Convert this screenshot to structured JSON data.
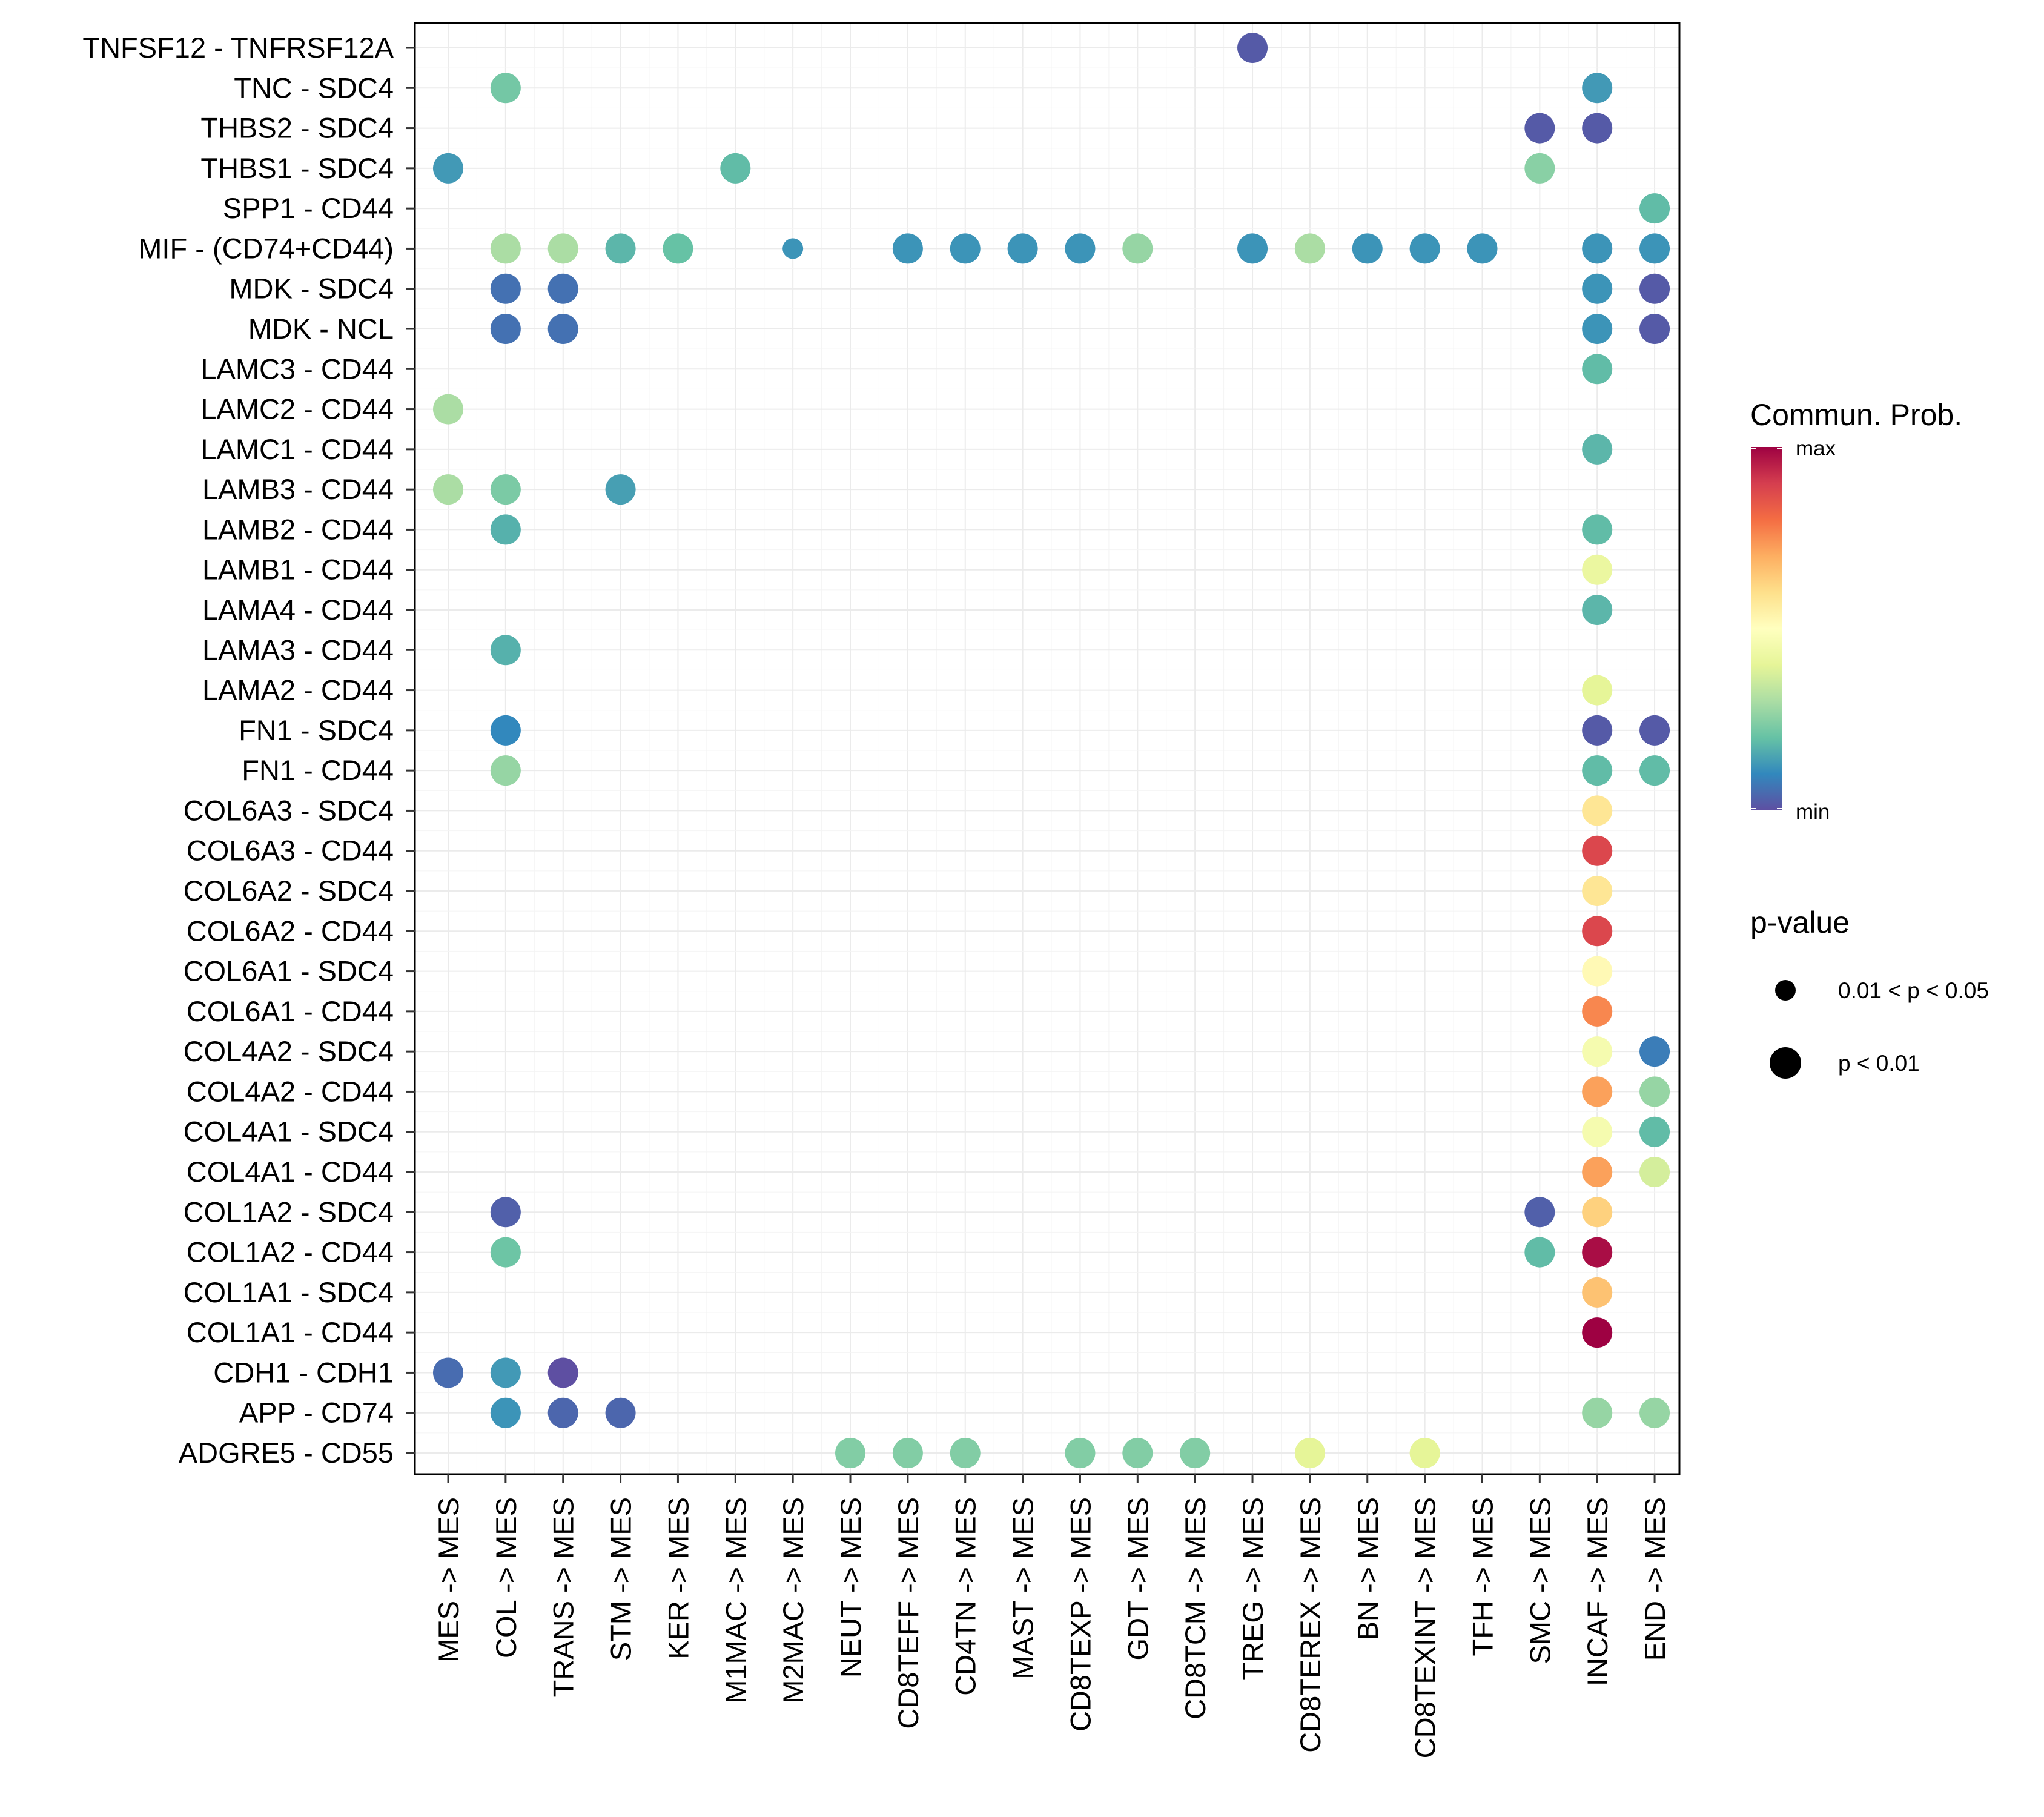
{
  "chart_data": {
    "type": "dotplot",
    "title": "",
    "xlabel": "",
    "ylabel": "",
    "rows": [
      "TNFSF12 - TNFRSF12A",
      "TNC - SDC4",
      "THBS2 - SDC4",
      "THBS1 - SDC4",
      "SPP1 - CD44",
      "MIF - (CD74+CD44)",
      "MDK - SDC4",
      "MDK - NCL",
      "LAMC3 - CD44",
      "LAMC2 - CD44",
      "LAMC1 - CD44",
      "LAMB3 - CD44",
      "LAMB2 - CD44",
      "LAMB1 - CD44",
      "LAMA4 - CD44",
      "LAMA3 - CD44",
      "LAMA2 - CD44",
      "FN1 - SDC4",
      "FN1 - CD44",
      "COL6A3 - SDC4",
      "COL6A3 - CD44",
      "COL6A2 - SDC4",
      "COL6A2 - CD44",
      "COL6A1 - SDC4",
      "COL6A1 - CD44",
      "COL4A2 - SDC4",
      "COL4A2 - CD44",
      "COL4A1 - SDC4",
      "COL4A1 - CD44",
      "COL1A2 - SDC4",
      "COL1A2 - CD44",
      "COL1A1 - SDC4",
      "COL1A1 - CD44",
      "CDH1 - CDH1",
      "APP - CD74",
      "ADGRE5 - CD55"
    ],
    "columns": [
      "MES -> MES",
      "COL -> MES",
      "TRANS -> MES",
      "STM -> MES",
      "KER -> MES",
      "M1MAC -> MES",
      "M2MAC -> MES",
      "NEUT -> MES",
      "CD8TEFF -> MES",
      "CD4TN -> MES",
      "MAST -> MES",
      "CD8TEXP -> MES",
      "GDT -> MES",
      "CD8TCM -> MES",
      "TREG -> MES",
      "CD8TEREX -> MES",
      "BN -> MES",
      "CD8TEXINT -> MES",
      "TFH -> MES",
      "SMC -> MES",
      "INCAF -> MES",
      "END -> MES"
    ],
    "value_scale": "relative communication probability, 0 = min, 1 = max",
    "points": [
      {
        "row": "TNFSF12 - TNFRSF12A",
        "col": "TREG -> MES",
        "prob": 0.02,
        "p": "p < 0.01"
      },
      {
        "row": "TNC - SDC4",
        "col": "COL -> MES",
        "prob": 0.22,
        "p": "p < 0.01"
      },
      {
        "row": "TNC - SDC4",
        "col": "INCAF -> MES",
        "prob": 0.13,
        "p": "p < 0.01"
      },
      {
        "row": "THBS2 - SDC4",
        "col": "SMC -> MES",
        "prob": 0.02,
        "p": "p < 0.01"
      },
      {
        "row": "THBS2 - SDC4",
        "col": "INCAF -> MES",
        "prob": 0.02,
        "p": "p < 0.01"
      },
      {
        "row": "THBS1 - SDC4",
        "col": "MES -> MES",
        "prob": 0.13,
        "p": "p < 0.01"
      },
      {
        "row": "THBS1 - SDC4",
        "col": "M1MAC -> MES",
        "prob": 0.19,
        "p": "p < 0.01"
      },
      {
        "row": "THBS1 - SDC4",
        "col": "SMC -> MES",
        "prob": 0.25,
        "p": "p < 0.01"
      },
      {
        "row": "SPP1 - CD44",
        "col": "END -> MES",
        "prob": 0.19,
        "p": "p < 0.01"
      },
      {
        "row": "MIF - (CD74+CD44)",
        "col": "COL -> MES",
        "prob": 0.3,
        "p": "p < 0.01"
      },
      {
        "row": "MIF - (CD74+CD44)",
        "col": "TRANS -> MES",
        "prob": 0.3,
        "p": "p < 0.01"
      },
      {
        "row": "MIF - (CD74+CD44)",
        "col": "STM -> MES",
        "prob": 0.18,
        "p": "p < 0.01"
      },
      {
        "row": "MIF - (CD74+CD44)",
        "col": "KER -> MES",
        "prob": 0.2,
        "p": "p < 0.01"
      },
      {
        "row": "MIF - (CD74+CD44)",
        "col": "M2MAC -> MES",
        "prob": 0.12,
        "p": "0.01 < p < 0.05"
      },
      {
        "row": "MIF - (CD74+CD44)",
        "col": "CD8TEFF -> MES",
        "prob": 0.12,
        "p": "p < 0.01"
      },
      {
        "row": "MIF - (CD74+CD44)",
        "col": "CD4TN -> MES",
        "prob": 0.12,
        "p": "p < 0.01"
      },
      {
        "row": "MIF - (CD74+CD44)",
        "col": "MAST -> MES",
        "prob": 0.12,
        "p": "p < 0.01"
      },
      {
        "row": "MIF - (CD74+CD44)",
        "col": "CD8TEXP -> MES",
        "prob": 0.12,
        "p": "p < 0.01"
      },
      {
        "row": "MIF - (CD74+CD44)",
        "col": "GDT -> MES",
        "prob": 0.27,
        "p": "p < 0.01"
      },
      {
        "row": "MIF - (CD74+CD44)",
        "col": "TREG -> MES",
        "prob": 0.12,
        "p": "p < 0.01"
      },
      {
        "row": "MIF - (CD74+CD44)",
        "col": "CD8TEREX -> MES",
        "prob": 0.3,
        "p": "p < 0.01"
      },
      {
        "row": "MIF - (CD74+CD44)",
        "col": "BN -> MES",
        "prob": 0.12,
        "p": "p < 0.01"
      },
      {
        "row": "MIF - (CD74+CD44)",
        "col": "CD8TEXINT -> MES",
        "prob": 0.12,
        "p": "p < 0.01"
      },
      {
        "row": "MIF - (CD74+CD44)",
        "col": "TFH -> MES",
        "prob": 0.12,
        "p": "p < 0.01"
      },
      {
        "row": "MIF - (CD74+CD44)",
        "col": "INCAF -> MES",
        "prob": 0.12,
        "p": "p < 0.01"
      },
      {
        "row": "MIF - (CD74+CD44)",
        "col": "END -> MES",
        "prob": 0.12,
        "p": "p < 0.01"
      },
      {
        "row": "MDK - SDC4",
        "col": "COL -> MES",
        "prob": 0.06,
        "p": "p < 0.01"
      },
      {
        "row": "MDK - SDC4",
        "col": "TRANS -> MES",
        "prob": 0.06,
        "p": "p < 0.01"
      },
      {
        "row": "MDK - SDC4",
        "col": "INCAF -> MES",
        "prob": 0.12,
        "p": "p < 0.01"
      },
      {
        "row": "MDK - SDC4",
        "col": "END -> MES",
        "prob": 0.02,
        "p": "p < 0.01"
      },
      {
        "row": "MDK - NCL",
        "col": "COL -> MES",
        "prob": 0.06,
        "p": "p < 0.01"
      },
      {
        "row": "MDK - NCL",
        "col": "TRANS -> MES",
        "prob": 0.06,
        "p": "p < 0.01"
      },
      {
        "row": "MDK - NCL",
        "col": "INCAF -> MES",
        "prob": 0.12,
        "p": "p < 0.01"
      },
      {
        "row": "MDK - NCL",
        "col": "END -> MES",
        "prob": 0.02,
        "p": "p < 0.01"
      },
      {
        "row": "LAMC3 - CD44",
        "col": "INCAF -> MES",
        "prob": 0.19,
        "p": "p < 0.01"
      },
      {
        "row": "LAMC2 - CD44",
        "col": "MES -> MES",
        "prob": 0.3,
        "p": "p < 0.01"
      },
      {
        "row": "LAMC1 - CD44",
        "col": "INCAF -> MES",
        "prob": 0.18,
        "p": "p < 0.01"
      },
      {
        "row": "LAMB3 - CD44",
        "col": "MES -> MES",
        "prob": 0.3,
        "p": "p < 0.01"
      },
      {
        "row": "LAMB3 - CD44",
        "col": "COL -> MES",
        "prob": 0.23,
        "p": "p < 0.01"
      },
      {
        "row": "LAMB3 - CD44",
        "col": "STM -> MES",
        "prob": 0.14,
        "p": "p < 0.01"
      },
      {
        "row": "LAMB2 - CD44",
        "col": "COL -> MES",
        "prob": 0.17,
        "p": "p < 0.01"
      },
      {
        "row": "LAMB2 - CD44",
        "col": "INCAF -> MES",
        "prob": 0.19,
        "p": "p < 0.01"
      },
      {
        "row": "LAMB1 - CD44",
        "col": "INCAF -> MES",
        "prob": 0.42,
        "p": "p < 0.01"
      },
      {
        "row": "LAMA4 - CD44",
        "col": "INCAF -> MES",
        "prob": 0.18,
        "p": "p < 0.01"
      },
      {
        "row": "LAMA3 - CD44",
        "col": "COL -> MES",
        "prob": 0.17,
        "p": "p < 0.01"
      },
      {
        "row": "LAMA2 - CD44",
        "col": "INCAF -> MES",
        "prob": 0.4,
        "p": "p < 0.01"
      },
      {
        "row": "FN1 - SDC4",
        "col": "COL -> MES",
        "prob": 0.1,
        "p": "p < 0.01"
      },
      {
        "row": "FN1 - SDC4",
        "col": "INCAF -> MES",
        "prob": 0.02,
        "p": "p < 0.01"
      },
      {
        "row": "FN1 - SDC4",
        "col": "END -> MES",
        "prob": 0.02,
        "p": "p < 0.01"
      },
      {
        "row": "FN1 - CD44",
        "col": "COL -> MES",
        "prob": 0.27,
        "p": "p < 0.01"
      },
      {
        "row": "FN1 - CD44",
        "col": "INCAF -> MES",
        "prob": 0.19,
        "p": "p < 0.01"
      },
      {
        "row": "FN1 - CD44",
        "col": "END -> MES",
        "prob": 0.19,
        "p": "p < 0.01"
      },
      {
        "row": "COL6A3 - SDC4",
        "col": "INCAF -> MES",
        "prob": 0.58,
        "p": "p < 0.01"
      },
      {
        "row": "COL6A3 - CD44",
        "col": "INCAF -> MES",
        "prob": 0.88,
        "p": "p < 0.01"
      },
      {
        "row": "COL6A2 - SDC4",
        "col": "INCAF -> MES",
        "prob": 0.58,
        "p": "p < 0.01"
      },
      {
        "row": "COL6A2 - CD44",
        "col": "INCAF -> MES",
        "prob": 0.88,
        "p": "p < 0.01"
      },
      {
        "row": "COL6A1 - SDC4",
        "col": "INCAF -> MES",
        "prob": 0.52,
        "p": "p < 0.01"
      },
      {
        "row": "COL6A1 - CD44",
        "col": "INCAF -> MES",
        "prob": 0.76,
        "p": "p < 0.01"
      },
      {
        "row": "COL4A2 - SDC4",
        "col": "INCAF -> MES",
        "prob": 0.46,
        "p": "p < 0.01"
      },
      {
        "row": "COL4A2 - SDC4",
        "col": "END -> MES",
        "prob": 0.08,
        "p": "p < 0.01"
      },
      {
        "row": "COL4A2 - CD44",
        "col": "INCAF -> MES",
        "prob": 0.72,
        "p": "p < 0.01"
      },
      {
        "row": "COL4A2 - CD44",
        "col": "END -> MES",
        "prob": 0.27,
        "p": "p < 0.01"
      },
      {
        "row": "COL4A1 - SDC4",
        "col": "INCAF -> MES",
        "prob": 0.46,
        "p": "p < 0.01"
      },
      {
        "row": "COL4A1 - SDC4",
        "col": "END -> MES",
        "prob": 0.19,
        "p": "p < 0.01"
      },
      {
        "row": "COL4A1 - CD44",
        "col": "INCAF -> MES",
        "prob": 0.72,
        "p": "p < 0.01"
      },
      {
        "row": "COL4A1 - CD44",
        "col": "END -> MES",
        "prob": 0.37,
        "p": "p < 0.01"
      },
      {
        "row": "COL1A2 - SDC4",
        "col": "COL -> MES",
        "prob": 0.03,
        "p": "p < 0.01"
      },
      {
        "row": "COL1A2 - SDC4",
        "col": "SMC -> MES",
        "prob": 0.03,
        "p": "p < 0.01"
      },
      {
        "row": "COL1A2 - SDC4",
        "col": "INCAF -> MES",
        "prob": 0.63,
        "p": "p < 0.01"
      },
      {
        "row": "COL1A2 - CD44",
        "col": "COL -> MES",
        "prob": 0.21,
        "p": "p < 0.01"
      },
      {
        "row": "COL1A2 - CD44",
        "col": "SMC -> MES",
        "prob": 0.19,
        "p": "p < 0.01"
      },
      {
        "row": "COL1A2 - CD44",
        "col": "INCAF -> MES",
        "prob": 0.98,
        "p": "p < 0.01"
      },
      {
        "row": "COL1A1 - SDC4",
        "col": "INCAF -> MES",
        "prob": 0.66,
        "p": "p < 0.01"
      },
      {
        "row": "COL1A1 - CD44",
        "col": "INCAF -> MES",
        "prob": 1.0,
        "p": "p < 0.01"
      },
      {
        "row": "CDH1 - CDH1",
        "col": "MES -> MES",
        "prob": 0.05,
        "p": "p < 0.01"
      },
      {
        "row": "CDH1 - CDH1",
        "col": "COL -> MES",
        "prob": 0.13,
        "p": "p < 0.01"
      },
      {
        "row": "CDH1 - CDH1",
        "col": "TRANS -> MES",
        "prob": 0.0,
        "p": "p < 0.01"
      },
      {
        "row": "APP - CD74",
        "col": "COL -> MES",
        "prob": 0.12,
        "p": "p < 0.01"
      },
      {
        "row": "APP - CD74",
        "col": "TRANS -> MES",
        "prob": 0.04,
        "p": "p < 0.01"
      },
      {
        "row": "APP - CD74",
        "col": "STM -> MES",
        "prob": 0.04,
        "p": "p < 0.01"
      },
      {
        "row": "APP - CD74",
        "col": "INCAF -> MES",
        "prob": 0.27,
        "p": "p < 0.01"
      },
      {
        "row": "APP - CD74",
        "col": "END -> MES",
        "prob": 0.27,
        "p": "p < 0.01"
      },
      {
        "row": "ADGRE5 - CD55",
        "col": "NEUT -> MES",
        "prob": 0.24,
        "p": "p < 0.01"
      },
      {
        "row": "ADGRE5 - CD55",
        "col": "CD8TEFF -> MES",
        "prob": 0.24,
        "p": "p < 0.01"
      },
      {
        "row": "ADGRE5 - CD55",
        "col": "CD4TN -> MES",
        "prob": 0.24,
        "p": "p < 0.01"
      },
      {
        "row": "ADGRE5 - CD55",
        "col": "CD8TEXP -> MES",
        "prob": 0.24,
        "p": "p < 0.01"
      },
      {
        "row": "ADGRE5 - CD55",
        "col": "GDT -> MES",
        "prob": 0.24,
        "p": "p < 0.01"
      },
      {
        "row": "ADGRE5 - CD55",
        "col": "CD8TCM -> MES",
        "prob": 0.24,
        "p": "p < 0.01"
      },
      {
        "row": "ADGRE5 - CD55",
        "col": "CD8TEREX -> MES",
        "prob": 0.4,
        "p": "p < 0.01"
      },
      {
        "row": "ADGRE5 - CD55",
        "col": "CD8TEXINT -> MES",
        "prob": 0.4,
        "p": "p < 0.01"
      }
    ],
    "color_legend": {
      "title": "Commun. Prob.",
      "max_label": "max",
      "min_label": "min",
      "palette": [
        "#5E4FA2",
        "#3288BD",
        "#66C2A5",
        "#ABDDA4",
        "#E6F598",
        "#FFFFBF",
        "#FEE08B",
        "#FDAE61",
        "#F46D43",
        "#D53E4F",
        "#9E0142"
      ]
    },
    "size_legend": {
      "title": "p-value",
      "items": [
        "0.01 < p < 0.05",
        "p < 0.01"
      ]
    }
  }
}
